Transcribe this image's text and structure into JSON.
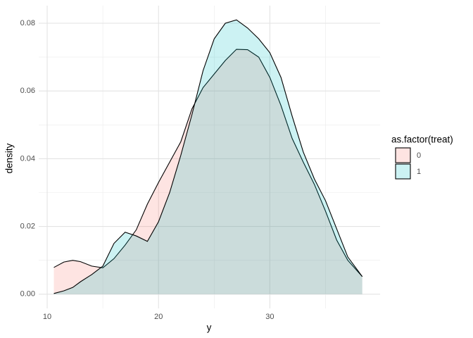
{
  "chart_data": {
    "type": "density",
    "x_label": "y",
    "y_label": "density",
    "legend_title": "as.factor(treat)",
    "legend_position": "right",
    "x": [
      10.6,
      11.5,
      12.3,
      13,
      14,
      15,
      16,
      17,
      18,
      19,
      20,
      21,
      22,
      23,
      24,
      25,
      26,
      27,
      28,
      29,
      30,
      31,
      32,
      33,
      34,
      35,
      36,
      37,
      38.3
    ],
    "series": [
      {
        "name": "0",
        "color": "#F8766D",
        "values": [
          0.0079,
          0.0095,
          0.01,
          0.0096,
          0.0083,
          0.0078,
          0.0105,
          0.0145,
          0.019,
          0.0266,
          0.033,
          0.039,
          0.045,
          0.0547,
          0.061,
          0.065,
          0.069,
          0.0723,
          0.0722,
          0.07,
          0.064,
          0.0557,
          0.046,
          0.039,
          0.0324,
          0.0245,
          0.016,
          0.01,
          0.0052
        ]
      },
      {
        "name": "1",
        "color": "#00BFC4",
        "values": [
          0.0002,
          0.001,
          0.002,
          0.0037,
          0.0058,
          0.0083,
          0.015,
          0.0183,
          0.0172,
          0.0156,
          0.0214,
          0.03,
          0.041,
          0.053,
          0.066,
          0.0754,
          0.08,
          0.081,
          0.0786,
          0.0754,
          0.0713,
          0.064,
          0.0526,
          0.042,
          0.034,
          0.0276,
          0.0193,
          0.011,
          0.0052
        ]
      }
    ],
    "xlim": [
      9.24,
      39.9
    ],
    "ylim": [
      -0.0042,
      0.0852
    ],
    "xticks": [
      10,
      20,
      30
    ],
    "yticks": [
      {
        "value": 0,
        "label": "0.00"
      },
      {
        "value": 0.02,
        "label": "0.02"
      },
      {
        "value": 0.04,
        "label": "0.04"
      },
      {
        "value": 0.06,
        "label": "0.06"
      },
      {
        "value": 0.08,
        "label": "0.08"
      }
    ],
    "xminorticks": [
      15,
      25,
      35
    ],
    "yminorticks": [
      0.01,
      0.03,
      0.05,
      0.07
    ],
    "grid": true,
    "fill_opacity": 0.2,
    "line_color": "#000000"
  }
}
